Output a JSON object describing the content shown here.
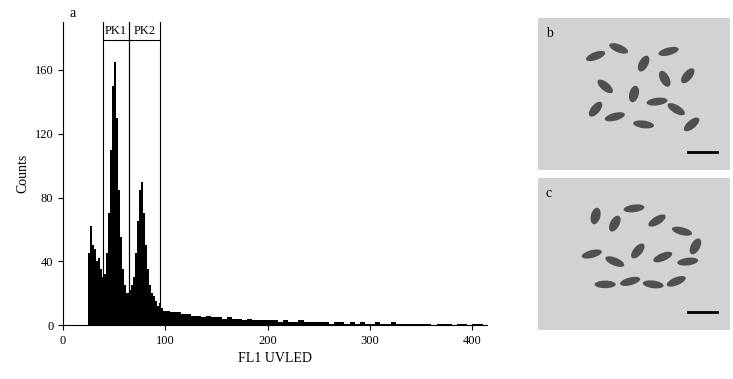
{
  "chart_data": {
    "type": "histogram",
    "panel_label": "a",
    "x_label": "FL1 UVLED",
    "y_label": "Counts",
    "bins": [
      24,
      26,
      28,
      30,
      32,
      34,
      36,
      38,
      40,
      42,
      44,
      46,
      48,
      50,
      52,
      54,
      56,
      58,
      60,
      62,
      64,
      66,
      68,
      70,
      72,
      74,
      76,
      78,
      80,
      82,
      84,
      86,
      88,
      90,
      92,
      94,
      96,
      98,
      100,
      105,
      110,
      115,
      120,
      125,
      130,
      135,
      140,
      145,
      150,
      155,
      160,
      165,
      170,
      175,
      180,
      185,
      190,
      195,
      200,
      205,
      210,
      215,
      220,
      225,
      230,
      235,
      240,
      245,
      250,
      255,
      260,
      265,
      270,
      275,
      280,
      285,
      290,
      295,
      300,
      305,
      310,
      315,
      320,
      325,
      330,
      335,
      340,
      345,
      350,
      355,
      360,
      365,
      370,
      375,
      380,
      385,
      390,
      395,
      400,
      405,
      410
    ],
    "counts": [
      45,
      62,
      50,
      48,
      40,
      42,
      35,
      30,
      32,
      45,
      70,
      110,
      150,
      165,
      130,
      85,
      55,
      35,
      25,
      20,
      22,
      25,
      30,
      45,
      65,
      85,
      90,
      70,
      50,
      35,
      25,
      20,
      18,
      15,
      12,
      14,
      11,
      9,
      9,
      8,
      8,
      7,
      7,
      6,
      6,
      5,
      6,
      5,
      5,
      4,
      5,
      4,
      4,
      3,
      4,
      3,
      3,
      3,
      3,
      3,
      2,
      3,
      2,
      2,
      3,
      2,
      2,
      2,
      2,
      2,
      1,
      2,
      2,
      1,
      2,
      1,
      2,
      1,
      1,
      2,
      1,
      1,
      2,
      1,
      1,
      1,
      1,
      1,
      1,
      1,
      0,
      1,
      1,
      1,
      0,
      1,
      1,
      0,
      1,
      1
    ],
    "color": "#000000",
    "xlim": [
      0,
      414
    ],
    "xticks": [
      0,
      100,
      200,
      300,
      400
    ],
    "ylim": [
      0,
      190
    ],
    "yticks": [
      0,
      40,
      80,
      120,
      160
    ],
    "grid": false,
    "gates": [
      {
        "label": "PK1",
        "range": [
          39,
          64
        ]
      },
      {
        "label": "PK2",
        "range": [
          64,
          95
        ]
      }
    ]
  },
  "panels": [
    {
      "label": "b"
    },
    {
      "label": "c"
    }
  ]
}
